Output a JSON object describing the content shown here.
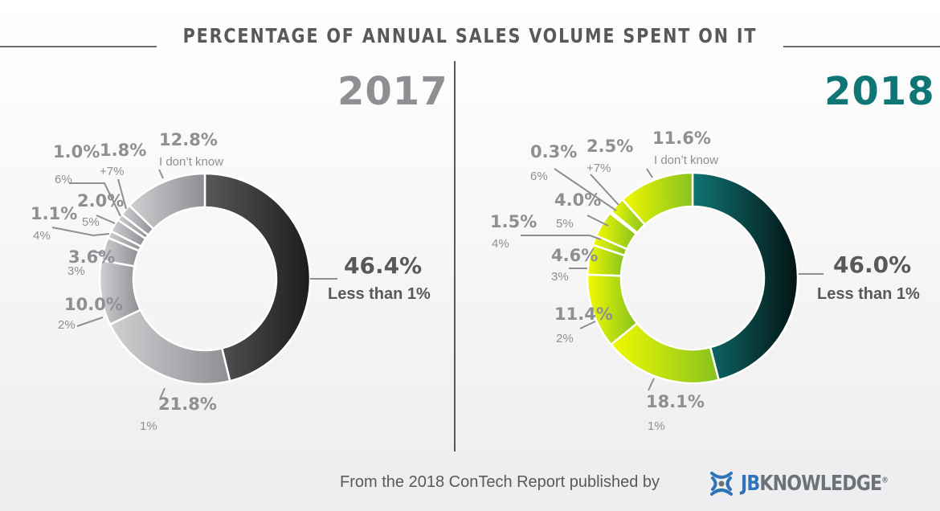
{
  "title": "PERCENTAGE OF ANNUAL SALES VOLUME SPENT ON IT",
  "colors": {
    "year_2017": "#8e8f93",
    "year_2018": "#0f7575",
    "text_dark": "#58595b",
    "text_light": "#8e8f93",
    "logo_blue": "#2f73b8",
    "logo_gray": "#6d7278"
  },
  "footer": {
    "text": "From the 2018 ConTech Report published by",
    "logo_icon": "jbknowledge-logo-icon",
    "logo_jb": "JB",
    "logo_rest": "KNOWLEDGE",
    "logo_mark": "®"
  },
  "chart_data": [
    {
      "type": "pie",
      "variant": "donut",
      "title": "2017",
      "categories": [
        "Less than 1%",
        "1%",
        "2%",
        "3%",
        "4%",
        "5%",
        "6%",
        "+7%",
        "I don't know"
      ],
      "values": [
        46.4,
        21.8,
        10.0,
        3.6,
        1.1,
        2.0,
        1.0,
        1.8,
        12.8
      ],
      "value_labels": [
        "46.4%",
        "21.8%",
        "10.0%",
        "3.6%",
        "1.1%",
        "2.0%",
        "1.0%",
        "1.8%",
        "12.8%"
      ],
      "start": "12 o'clock, clockwise",
      "palette": "grayscale (dark slice for Less than 1%)"
    },
    {
      "type": "pie",
      "variant": "donut",
      "title": "2018",
      "categories": [
        "Less than 1%",
        "1%",
        "2%",
        "3%",
        "4%",
        "5%",
        "6%",
        "+7%",
        "I don't know"
      ],
      "values": [
        46.0,
        18.1,
        11.4,
        4.6,
        1.5,
        4.0,
        0.3,
        2.5,
        11.6
      ],
      "value_labels": [
        "46.0%",
        "18.1%",
        "11.4%",
        "4.6%",
        "1.5%",
        "4.0%",
        "0.3%",
        "2.5%",
        "11.6%"
      ],
      "start": "12 o'clock, clockwise",
      "palette": "teal for Less than 1%, yellow-green for others"
    }
  ]
}
